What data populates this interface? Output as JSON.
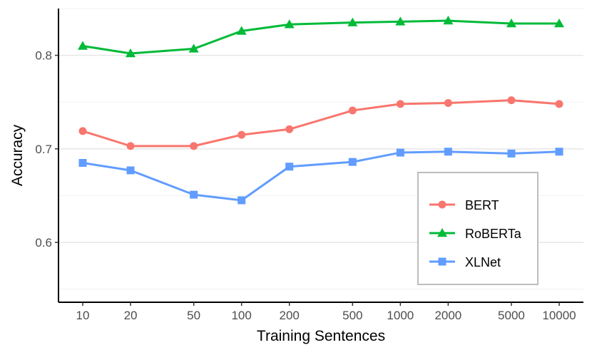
{
  "chart_data": {
    "type": "line",
    "title": "",
    "xlabel": "Training Sentences",
    "ylabel": "Accuracy",
    "x_scale": "log10",
    "x": [
      10,
      20,
      50,
      100,
      200,
      500,
      1000,
      2000,
      5000,
      10000
    ],
    "x_tick_labels": [
      "10",
      "20",
      "50",
      "100",
      "200",
      "500",
      "1000",
      "2000",
      "5000",
      "10000"
    ],
    "y_ticks": [
      0.6,
      0.7,
      0.8
    ],
    "y_tick_labels": [
      "0.6",
      "0.7",
      "0.8"
    ],
    "ylim": [
      0.536,
      0.85
    ],
    "grid": "horizontal-major-and-minor",
    "legend_placement": "bottom-right",
    "series": [
      {
        "name": "BERT",
        "color": "#F8766D",
        "marker": "circle",
        "values": [
          0.719,
          0.703,
          0.703,
          0.715,
          0.721,
          0.741,
          0.748,
          0.749,
          0.752,
          0.748
        ]
      },
      {
        "name": "RoBERTa",
        "color": "#00BA38",
        "marker": "triangle",
        "values": [
          0.81,
          0.802,
          0.807,
          0.826,
          0.833,
          0.835,
          0.836,
          0.837,
          0.834,
          0.834
        ]
      },
      {
        "name": "XLNet",
        "color": "#619CFF",
        "marker": "square",
        "values": [
          0.685,
          0.677,
          0.651,
          0.645,
          0.681,
          0.686,
          0.696,
          0.697,
          0.695,
          0.697
        ]
      }
    ]
  }
}
